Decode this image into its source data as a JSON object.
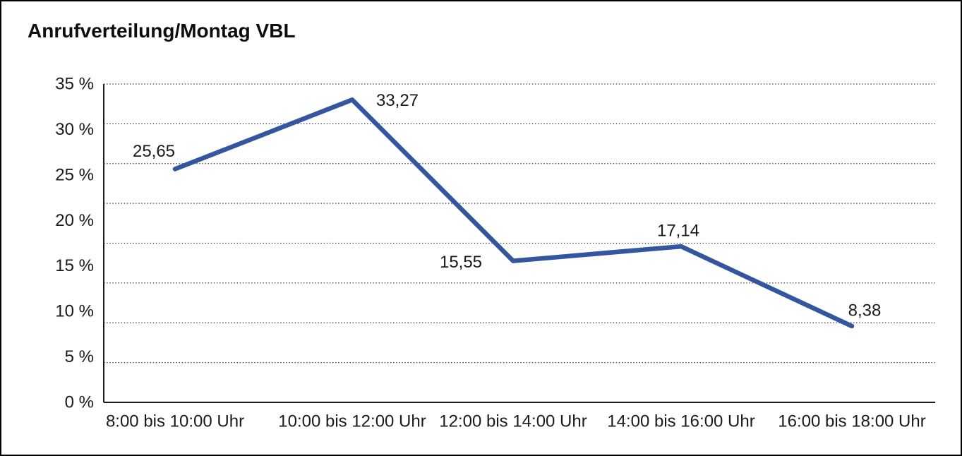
{
  "chart_data": {
    "type": "line",
    "title": "Anrufverteilung/Montag VBL",
    "categories": [
      "8:00 bis 10:00 Uhr",
      "10:00 bis 12:00 Uhr",
      "12:00 bis 14:00 Uhr",
      "14:00 bis 16:00 Uhr",
      "16:00 bis 18:00 Uhr"
    ],
    "values": [
      25.65,
      33.27,
      15.55,
      17.14,
      8.38
    ],
    "point_labels": [
      "25,65",
      "33,27",
      "15,55",
      "17,14",
      "8,38"
    ],
    "y_ticks": [
      "35 %",
      "30 %",
      "25 %",
      "20 %",
      "15 %",
      "10 %",
      "5 %",
      "0 %"
    ],
    "ylim": [
      0,
      35
    ],
    "xlabel": "",
    "ylabel": "",
    "legend": "none",
    "grid": "horizontal-dotted-8-divisions",
    "line_color": "#34569f",
    "axis_color": "#1a1a1a",
    "gridline_color": "#3c3c3c",
    "text_color": "#1a1a1a",
    "background_color": "#ffffff"
  }
}
